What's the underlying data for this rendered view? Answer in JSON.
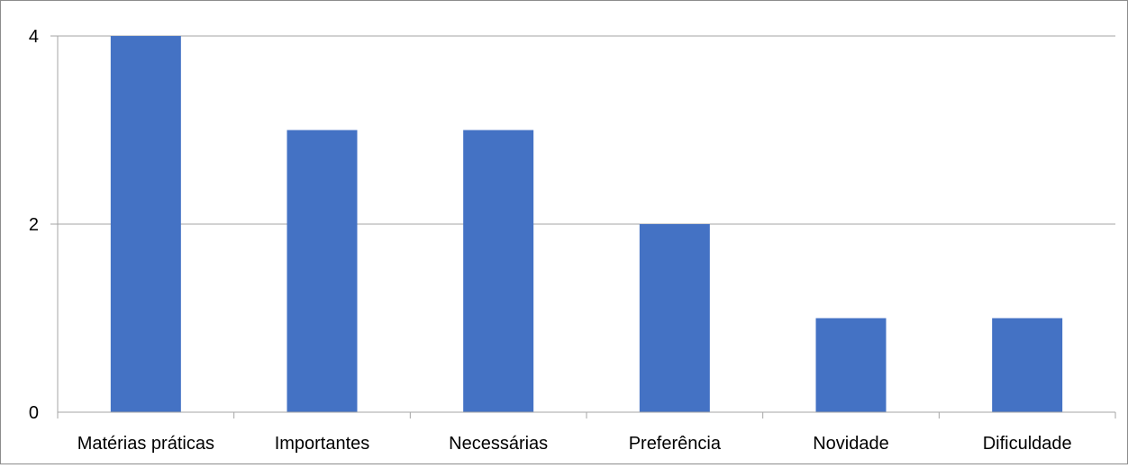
{
  "chart_data": {
    "type": "bar",
    "title": "",
    "xlabel": "",
    "ylabel": "",
    "categories": [
      "Matérias práticas",
      "Importantes",
      "Necessárias",
      "Preferência",
      "Novidade",
      "Dificuldade"
    ],
    "values": [
      4,
      3,
      3,
      2,
      1,
      1
    ],
    "ylim": [
      0,
      4
    ],
    "yticks": [
      0,
      2,
      4
    ],
    "grid": true,
    "legend": "none",
    "colors": {
      "bar": "#4472C4",
      "gridline": "#a6a6a6",
      "axis": "#a6a6a6",
      "frame": "#8c8c8c",
      "text": "#000000"
    }
  }
}
